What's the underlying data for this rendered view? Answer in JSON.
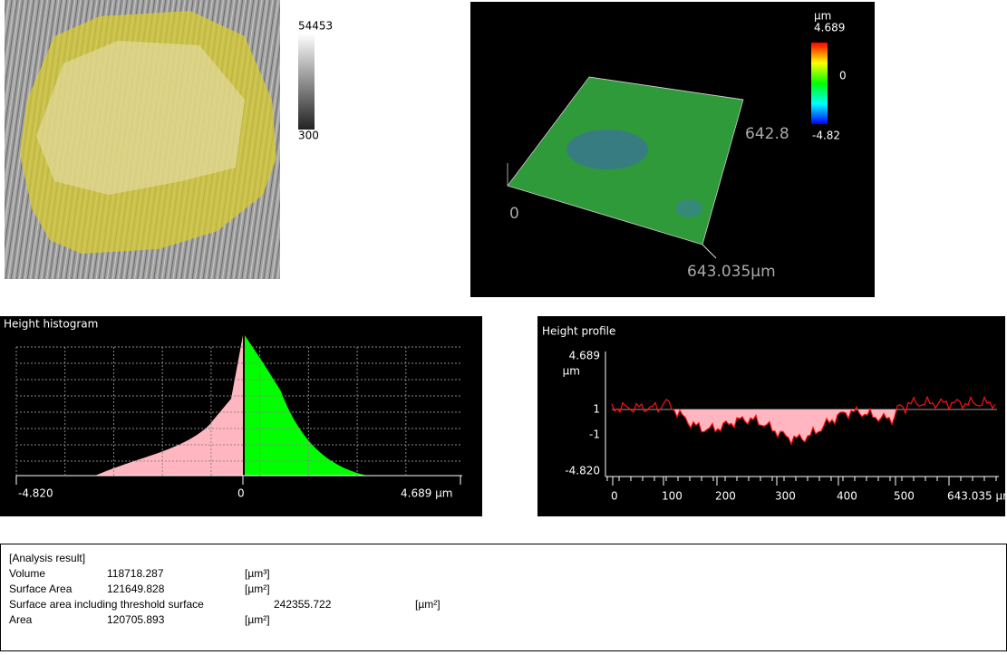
{
  "image_panel": {
    "colorbar_max": "54453",
    "colorbar_min": "300"
  },
  "surface_3d": {
    "unit": "µm",
    "scale_max": "4.689",
    "scale_mid": "0",
    "scale_min": "-4.82",
    "y_extent": "642.8",
    "origin": "0",
    "x_extent": "643.035µm"
  },
  "histogram": {
    "title": "Height histogram",
    "x_labels": [
      "-4.820",
      "0",
      "4.689 µm"
    ]
  },
  "profile": {
    "title": "Height profile",
    "y_labels": [
      "4.689",
      "1",
      "-1",
      "-4.820"
    ],
    "y_unit": "µm",
    "x_labels": [
      "0",
      "100",
      "200",
      "300",
      "400",
      "500",
      "643.035 µm"
    ]
  },
  "analysis": {
    "title": "[Analysis result]",
    "rows": [
      [
        "Volume",
        "118718.287",
        "[µm³]"
      ],
      [
        "Surface Area",
        "121649.828",
        "[µm²]"
      ],
      [
        "Surface area including threshold surface",
        "242355.722",
        "[µm²]"
      ],
      [
        "Area",
        "120705.893",
        "[µm²]"
      ]
    ]
  }
}
